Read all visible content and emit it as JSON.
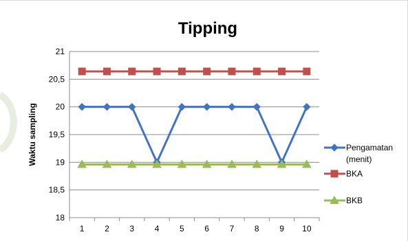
{
  "chart_data": {
    "type": "line",
    "title": "Tipping",
    "xlabel": "",
    "ylabel": "Waktu sampling",
    "categories": [
      "1",
      "2",
      "3",
      "4",
      "5",
      "6",
      "7",
      "8",
      "9",
      "10"
    ],
    "ylim": [
      18,
      21
    ],
    "ytick_labels": [
      "18",
      "18,5",
      "19",
      "19,5",
      "20",
      "20,5",
      "21"
    ],
    "ytick_values": [
      18,
      18.5,
      19,
      19.5,
      20,
      20.5,
      21
    ],
    "grid": "horizontal",
    "legend_placement": "right",
    "series": [
      {
        "name": "Pengamatan (menit)",
        "name_lines": [
          "Pengamatan",
          "(menit)"
        ],
        "values": [
          20,
          20,
          20,
          19,
          20,
          20,
          20,
          20,
          19,
          20
        ],
        "color": "#4472c4",
        "marker": "diamond"
      },
      {
        "name": "BKA",
        "name_lines": [
          "BKA"
        ],
        "values": [
          20.64,
          20.64,
          20.64,
          20.64,
          20.64,
          20.64,
          20.64,
          20.64,
          20.64,
          20.64
        ],
        "color": "#c0504d",
        "marker": "square"
      },
      {
        "name": "BKB",
        "name_lines": [
          "BKB"
        ],
        "values": [
          18.96,
          18.96,
          18.96,
          18.96,
          18.96,
          18.96,
          18.96,
          18.96,
          18.96,
          18.96
        ],
        "color": "#9bbb59",
        "marker": "triangle"
      }
    ]
  }
}
